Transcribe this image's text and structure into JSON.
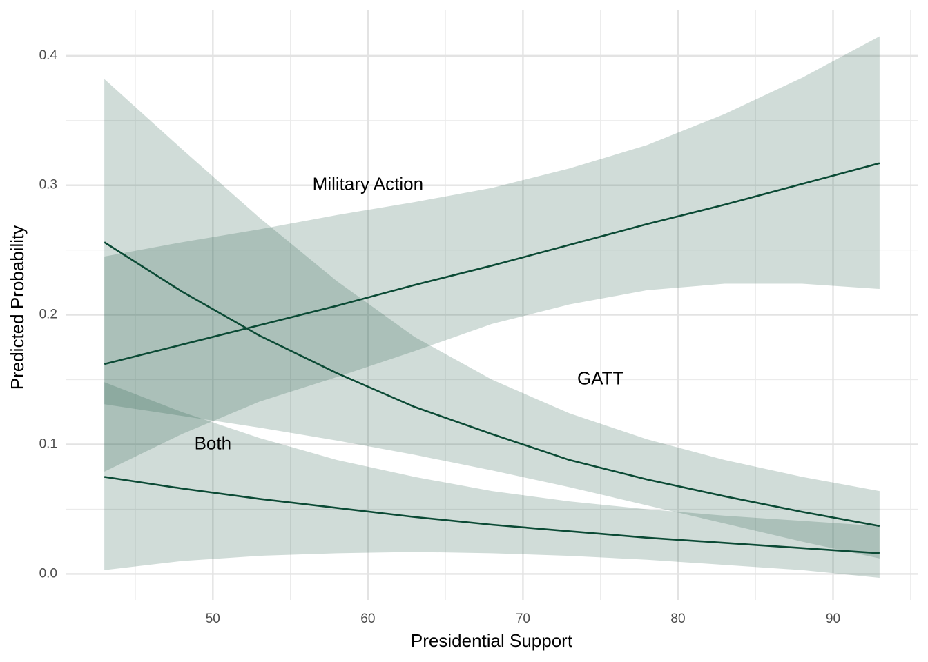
{
  "chart_data": {
    "type": "line",
    "x_label": "Presidential Support",
    "y_label": "Predicted Probability",
    "x": [
      43,
      48,
      53,
      58,
      63,
      68,
      73,
      78,
      83,
      88,
      93
    ],
    "series": [
      {
        "name": "Military Action",
        "color": "#0b4a35",
        "band_color": "#1f5c45",
        "label_at": [
          60,
          0.3
        ],
        "values": [
          0.162,
          0.177,
          0.192,
          0.207,
          0.223,
          0.238,
          0.254,
          0.27,
          0.285,
          0.301,
          0.317
        ],
        "lower": [
          0.079,
          0.108,
          0.133,
          0.152,
          0.172,
          0.193,
          0.208,
          0.219,
          0.224,
          0.224,
          0.22
        ],
        "upper": [
          0.245,
          0.256,
          0.266,
          0.277,
          0.287,
          0.298,
          0.313,
          0.331,
          0.355,
          0.383,
          0.415
        ]
      },
      {
        "name": "GATT",
        "color": "#0b4a35",
        "band_color": "#1f5c45",
        "label_at": [
          75,
          0.15
        ],
        "values": [
          0.256,
          0.218,
          0.184,
          0.155,
          0.129,
          0.108,
          0.088,
          0.073,
          0.06,
          0.048,
          0.037
        ],
        "lower": [
          0.131,
          0.122,
          0.113,
          0.103,
          0.092,
          0.08,
          0.067,
          0.053,
          0.039,
          0.025,
          0.012
        ],
        "upper": [
          0.382,
          0.328,
          0.275,
          0.226,
          0.183,
          0.15,
          0.124,
          0.104,
          0.088,
          0.075,
          0.064
        ]
      },
      {
        "name": "Both",
        "color": "#0b4a35",
        "band_color": "#1f5c45",
        "label_at": [
          50,
          0.1
        ],
        "values": [
          0.075,
          0.066,
          0.058,
          0.051,
          0.044,
          0.038,
          0.033,
          0.028,
          0.024,
          0.02,
          0.016
        ],
        "lower": [
          0.003,
          0.01,
          0.014,
          0.016,
          0.017,
          0.016,
          0.014,
          0.011,
          0.007,
          0.003,
          -0.003
        ],
        "upper": [
          0.148,
          0.125,
          0.105,
          0.088,
          0.075,
          0.064,
          0.056,
          0.05,
          0.045,
          0.041,
          0.037
        ]
      }
    ],
    "xlim": [
      40.5,
      95.5
    ],
    "ylim": [
      -0.02,
      0.435
    ],
    "xticks": [
      50,
      60,
      70,
      80,
      90
    ],
    "yticks": [
      {
        "value": 0,
        "label": "0.0"
      },
      0.1,
      0.2,
      0.3,
      0.4
    ],
    "x_minor_ticks": [
      45,
      55,
      65,
      75,
      85,
      95
    ],
    "y_minor_ticks": [
      0.05,
      0.15,
      0.25,
      0.35
    ],
    "grid": true
  }
}
